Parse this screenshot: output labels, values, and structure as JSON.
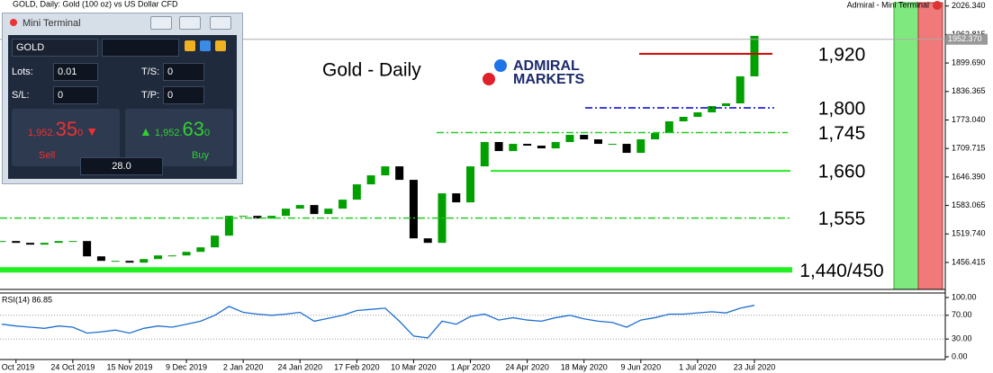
{
  "window": {
    "symbol_title": "GOLD, Daily:  Gold (100 oz) vs US Dollar CFD",
    "terminal_label": "Admiral - Mini Terminal"
  },
  "logo": {
    "line1": "ADMIRAL",
    "line2": "MARKETS"
  },
  "mini_terminal": {
    "title": "Mini Terminal",
    "symbol": "GOLD",
    "lots_label": "Lots:",
    "lots": "0.01",
    "ts_label": "T/S:",
    "ts": "0",
    "sl_label": "S/L:",
    "sl": "0",
    "tp_label": "T/P:",
    "tp": "0",
    "sell_price_main": "1,952.",
    "sell_price_big": "35",
    "sell_price_small": "0",
    "buy_price_main": "1,952.",
    "buy_price_big": "63",
    "buy_price_small": "0",
    "sell": "Sell",
    "volume": "28.0",
    "buy": "Buy"
  },
  "chart_data": [
    {
      "type": "candlestick",
      "title": "Gold - Daily",
      "up_color": "#00a000",
      "down_color": "#000000",
      "categories": [
        null,
        "Oct 2019",
        null,
        null,
        null,
        "24 Oct 2019",
        null,
        null,
        null,
        "15 Nov 2019",
        null,
        null,
        null,
        "9 Dec 2019",
        null,
        null,
        null,
        "2 Jan 2020",
        null,
        null,
        null,
        "24 Jan 2020",
        null,
        null,
        null,
        "17 Feb 2020",
        null,
        null,
        null,
        "10 Mar 2020",
        null,
        null,
        null,
        "1 Apr 2020",
        null,
        null,
        null,
        "24 Apr 2020",
        null,
        null,
        null,
        "18 May 2020",
        null,
        null,
        null,
        "9 Jun 2020",
        null,
        null,
        null,
        "1 Jul 2020",
        null,
        null,
        null,
        "23 Jul 2020"
      ],
      "values": [
        1504,
        1500,
        1496,
        1500,
        1504,
        1504,
        1470,
        1460,
        1460,
        1456,
        1464,
        1472,
        1472,
        1480,
        1490,
        1516,
        1560,
        1560,
        1554,
        1560,
        1576,
        1584,
        1564,
        1576,
        1596,
        1630,
        1650,
        1670,
        1640,
        1510,
        1500,
        1610,
        1590,
        1670,
        1724,
        1704,
        1720,
        1716,
        1710,
        1724,
        1740,
        1730,
        1720,
        1720,
        1700,
        1730,
        1744,
        1770,
        1780,
        1790,
        1804,
        1810,
        1870,
        1960
      ],
      "ylim": [
        1396.5,
        2039.7
      ],
      "yticks": [
        {
          "value": 2026.34,
          "label": "2026.340"
        },
        1962.815,
        {
          "value": 1899.69,
          "label": "1899.690"
        },
        1836.365,
        {
          "value": 1773.04,
          "label": "1773.040"
        },
        1709.715,
        {
          "value": 1646.39,
          "label": "1646.390"
        },
        1583.065,
        {
          "value": 1519.74,
          "label": "1519.740"
        },
        1456.415
      ],
      "current_price": {
        "value": 1952.37,
        "label": "1952.370"
      },
      "levels": [
        {
          "label": "1,920",
          "value": 1920,
          "color": "#d00000",
          "style": "solid"
        },
        {
          "label": "1,800",
          "value": 1800,
          "color": "#0000d0",
          "style": "dash-dot"
        },
        {
          "label": "1,745",
          "value": 1745,
          "color": "#22cc22",
          "style": "dash-dot"
        },
        {
          "label": "1,660",
          "value": 1660,
          "color": "#22ee22",
          "style": "solid"
        },
        {
          "label": "1,555",
          "value": 1555,
          "color": "#22cc22",
          "style": "dash-dot"
        },
        {
          "label": "1,440/450",
          "value": 1440,
          "color": "#22ee22",
          "style": "thick"
        }
      ]
    },
    {
      "type": "line",
      "title": "RSI(14) 86.85",
      "color": "#1e6fd0",
      "values": [
        55,
        52,
        50,
        48,
        52,
        50,
        40,
        42,
        45,
        40,
        48,
        52,
        50,
        55,
        60,
        70,
        85,
        75,
        72,
        70,
        72,
        75,
        60,
        65,
        70,
        78,
        80,
        82,
        60,
        35,
        32,
        60,
        55,
        68,
        72,
        62,
        66,
        62,
        60,
        66,
        70,
        64,
        60,
        58,
        50,
        62,
        66,
        72,
        72,
        74,
        76,
        74,
        82,
        86.85
      ],
      "ylim": [
        0,
        100
      ],
      "yticks": [
        {
          "value": 100,
          "label": "100.00"
        },
        {
          "value": 70,
          "label": "70.00"
        },
        {
          "value": 30,
          "label": "30.00"
        },
        {
          "value": 0,
          "label": "0.00"
        }
      ],
      "grid": true
    }
  ]
}
